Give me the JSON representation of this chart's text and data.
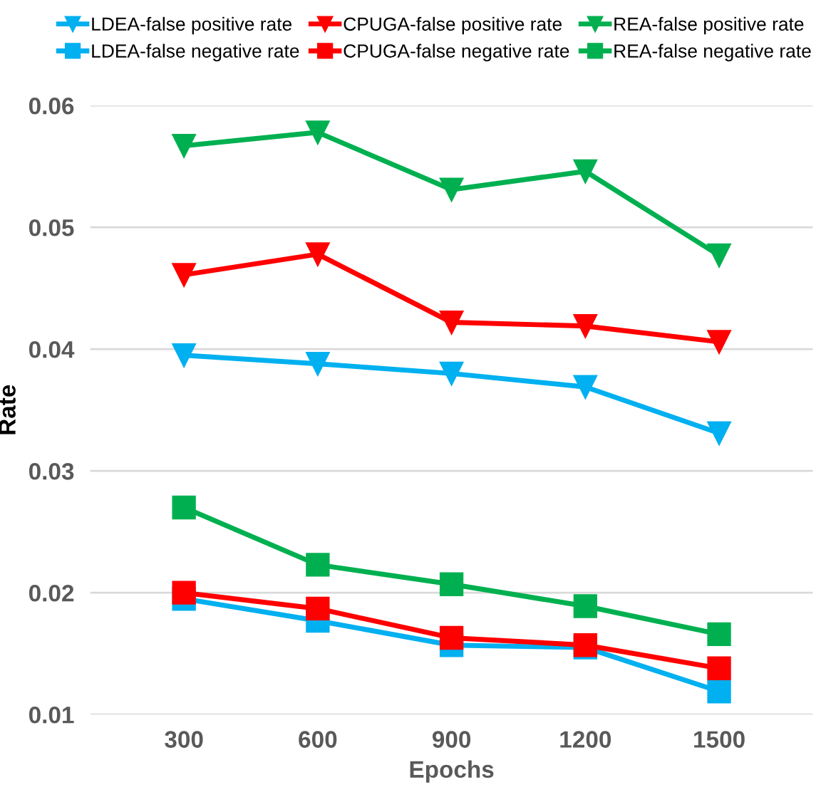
{
  "chart_data": {
    "type": "line",
    "xlabel": "Epochs",
    "ylabel": "Rate",
    "categories": [
      "300",
      "600",
      "900",
      "1200",
      "1500"
    ],
    "ylim": [
      0.01,
      0.06
    ],
    "yticks": [
      0.01,
      0.02,
      0.03,
      0.04,
      0.05,
      0.06
    ],
    "grid": "y",
    "legend": "top",
    "line_style": "solid",
    "series": [
      {
        "name": "LDEA-false positive rate",
        "color": "#00b0f0",
        "marker": "triangle",
        "values": [
          0.0395,
          0.0388,
          0.038,
          0.0369,
          0.0331
        ]
      },
      {
        "name": "CPUGA-false positive rate",
        "color": "#ff0000",
        "marker": "triangle",
        "values": [
          0.0461,
          0.0478,
          0.0422,
          0.0419,
          0.0406
        ]
      },
      {
        "name": "REA-false positive rate",
        "color": "#00b050",
        "marker": "triangle",
        "values": [
          0.0567,
          0.0578,
          0.0531,
          0.0546,
          0.0477
        ]
      },
      {
        "name": "LDEA-false negative rate",
        "color": "#00b0f0",
        "marker": "square",
        "values": [
          0.0195,
          0.0177,
          0.0157,
          0.0155,
          0.0119
        ]
      },
      {
        "name": "CPUGA-false negative rate",
        "color": "#ff0000",
        "marker": "square",
        "values": [
          0.02,
          0.0187,
          0.0163,
          0.0157,
          0.0138
        ]
      },
      {
        "name": "REA-false negative rate",
        "color": "#00b050",
        "marker": "square",
        "values": [
          0.027,
          0.0223,
          0.0207,
          0.0189,
          0.0166
        ]
      }
    ]
  }
}
